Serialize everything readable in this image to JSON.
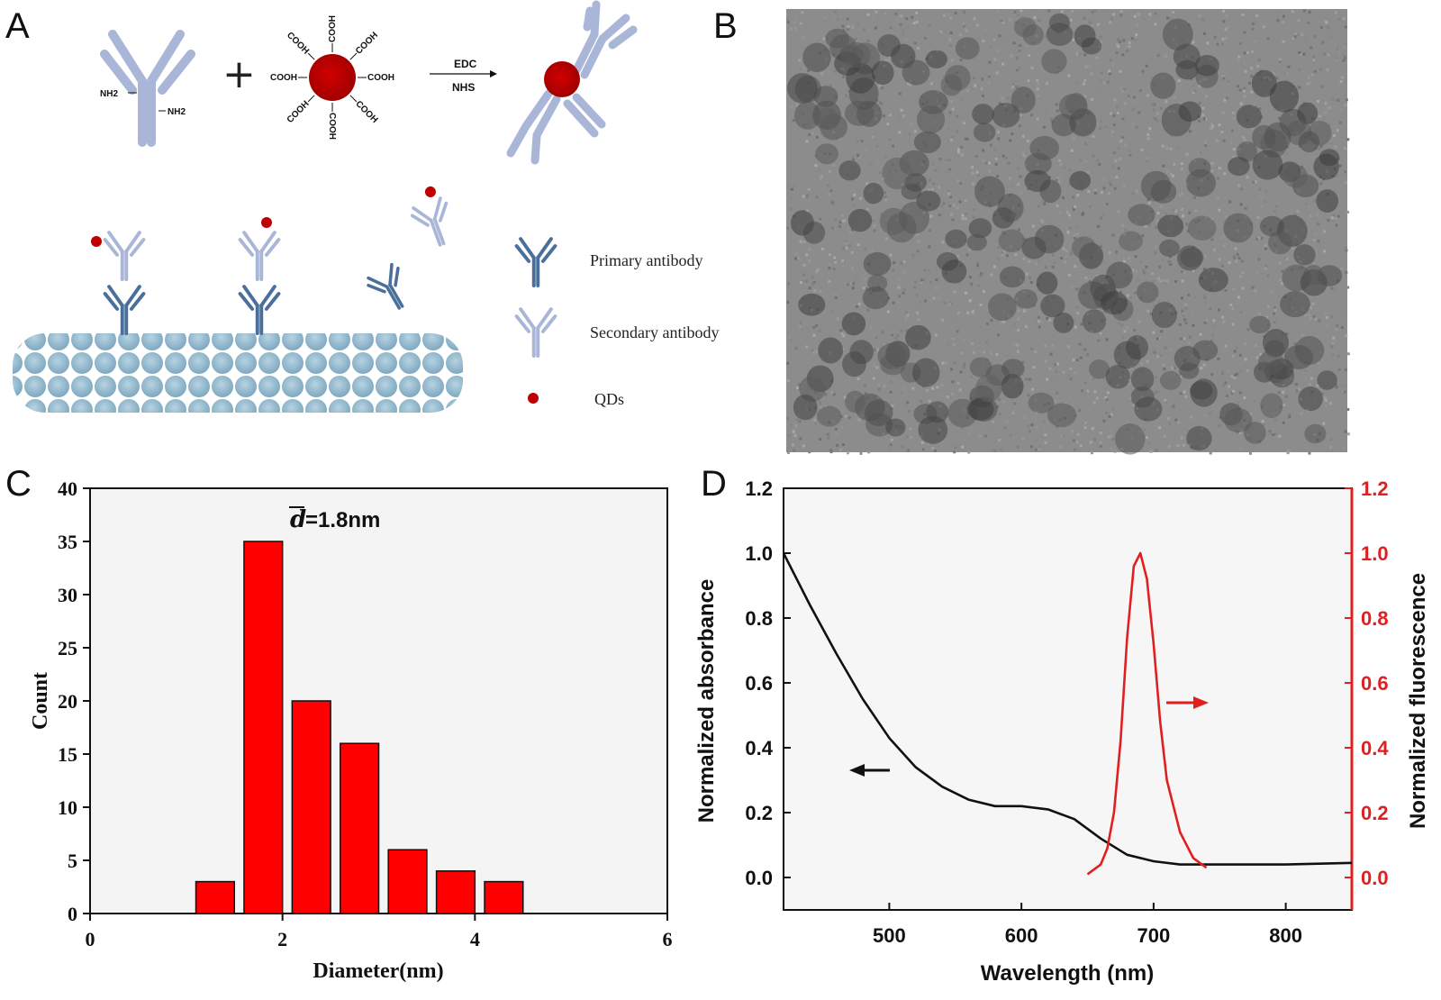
{
  "panels": {
    "a": "A",
    "b": "B",
    "c": "C",
    "d": "D"
  },
  "panel_a": {
    "amine_left": "NH2",
    "amine_right": "NH2",
    "plus": "+",
    "carboxyl": "COOH",
    "reagent_top": "EDC",
    "reagent_bottom": "NHS",
    "legend": {
      "primary": "Primary  antibody",
      "secondary": "Secondary  antibody",
      "qds": "QDs"
    },
    "colors": {
      "primary_antibody": "#4a6f9a",
      "secondary_antibody": "#aab6d8",
      "qd": "#b80000",
      "substrate": "#8fb8cf"
    }
  },
  "panel_b": {
    "image": "TEM micrograph of quantum dots",
    "background": "#8a8a8a"
  },
  "chart_data": [
    {
      "type": "bar",
      "annotation_symbol": "d",
      "annotation_text": "=1.8nm",
      "xlabel": "Diameter(nm)",
      "ylabel": "Count",
      "xlim": [
        0,
        6
      ],
      "ylim": [
        0,
        40
      ],
      "xticks": [
        "0",
        "2",
        "4",
        "6"
      ],
      "yticks": [
        "0",
        "5",
        "10",
        "15",
        "20",
        "25",
        "30",
        "35",
        "40"
      ],
      "bins": [
        1.3,
        1.8,
        2.3,
        2.8,
        3.3,
        3.8,
        4.3
      ],
      "values": [
        3,
        35,
        20,
        16,
        6,
        4,
        3
      ],
      "bar_color": "#ff0000"
    },
    {
      "type": "line",
      "xlabel": "Wavelength (nm)",
      "ylabel": "Normalized absorbance",
      "ylabel_right": "Normalized fluorescence",
      "xlim": [
        420,
        850
      ],
      "ylim": [
        -0.1,
        1.2
      ],
      "xticks": [
        "500",
        "600",
        "700",
        "800"
      ],
      "yticks": [
        "0.0",
        "0.2",
        "0.4",
        "0.6",
        "0.8",
        "1.0",
        "1.2"
      ],
      "yticks_right": [
        "0.0",
        "0.2",
        "0.4",
        "0.6",
        "0.8",
        "1.0",
        "1.2"
      ],
      "series": [
        {
          "axis": "left",
          "color": "#111111",
          "x": [
            420,
            440,
            460,
            480,
            500,
            520,
            540,
            560,
            580,
            600,
            620,
            640,
            660,
            680,
            700,
            720,
            760,
            800,
            850
          ],
          "y": [
            1.0,
            0.84,
            0.69,
            0.55,
            0.43,
            0.34,
            0.28,
            0.24,
            0.22,
            0.22,
            0.21,
            0.18,
            0.12,
            0.07,
            0.05,
            0.04,
            0.04,
            0.04,
            0.045
          ]
        },
        {
          "axis": "right",
          "color": "#e02020",
          "x": [
            650,
            660,
            665,
            670,
            675,
            680,
            685,
            690,
            695,
            700,
            705,
            710,
            720,
            730,
            740
          ],
          "y": [
            0.01,
            0.04,
            0.09,
            0.2,
            0.42,
            0.74,
            0.96,
            1.0,
            0.92,
            0.72,
            0.48,
            0.3,
            0.14,
            0.06,
            0.03
          ]
        }
      ]
    }
  ]
}
